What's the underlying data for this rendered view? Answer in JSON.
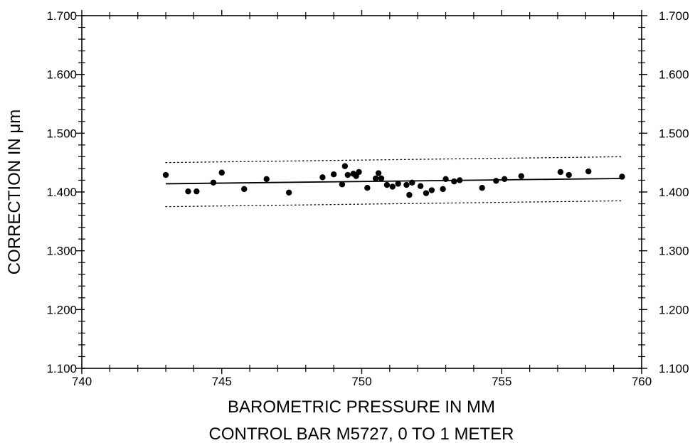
{
  "chart_data": {
    "type": "scatter",
    "title": "",
    "caption": "CONTROL BAR M5727, 0 TO 1 METER",
    "xlabel": "BAROMETRIC PRESSURE IN MM",
    "ylabel": "CORRECTION IN μm",
    "xlim": [
      740,
      760
    ],
    "ylim": [
      1.1,
      1.7
    ],
    "x_ticks": [
      "740",
      "745",
      "750",
      "755",
      "760"
    ],
    "x_tick_values": [
      740,
      745,
      750,
      755,
      760
    ],
    "y_ticks": [
      "1.100",
      "1.200",
      "1.300",
      "1.400",
      "1.500",
      "1.600",
      "1.700"
    ],
    "y_tick_values": [
      1.1,
      1.2,
      1.3,
      1.4,
      1.5,
      1.6,
      1.7
    ],
    "right_axis_labels": true,
    "grid": false,
    "points": [
      [
        743.0,
        1.429
      ],
      [
        743.8,
        1.401
      ],
      [
        744.1,
        1.401
      ],
      [
        744.7,
        1.416
      ],
      [
        745.0,
        1.433
      ],
      [
        745.8,
        1.405
      ],
      [
        746.6,
        1.422
      ],
      [
        747.4,
        1.399
      ],
      [
        748.6,
        1.425
      ],
      [
        749.0,
        1.43
      ],
      [
        749.3,
        1.413
      ],
      [
        749.4,
        1.444
      ],
      [
        749.5,
        1.429
      ],
      [
        749.7,
        1.431
      ],
      [
        749.8,
        1.427
      ],
      [
        749.9,
        1.434
      ],
      [
        750.2,
        1.407
      ],
      [
        750.5,
        1.423
      ],
      [
        750.6,
        1.432
      ],
      [
        750.7,
        1.423
      ],
      [
        750.9,
        1.412
      ],
      [
        751.1,
        1.409
      ],
      [
        751.3,
        1.414
      ],
      [
        751.6,
        1.412
      ],
      [
        751.7,
        1.395
      ],
      [
        751.8,
        1.416
      ],
      [
        752.1,
        1.41
      ],
      [
        752.3,
        1.398
      ],
      [
        752.5,
        1.403
      ],
      [
        752.9,
        1.405
      ],
      [
        753.0,
        1.422
      ],
      [
        753.3,
        1.418
      ],
      [
        753.5,
        1.42
      ],
      [
        754.3,
        1.407
      ],
      [
        754.8,
        1.419
      ],
      [
        755.1,
        1.422
      ],
      [
        755.7,
        1.427
      ],
      [
        757.1,
        1.434
      ],
      [
        757.4,
        1.429
      ],
      [
        758.1,
        1.435
      ],
      [
        759.3,
        1.426
      ]
    ],
    "fit_line": {
      "x": [
        743.0,
        759.3
      ],
      "y": [
        1.414,
        1.423
      ],
      "style": "solid"
    },
    "band_upper": {
      "x": [
        743.0,
        759.3
      ],
      "y": [
        1.45,
        1.46
      ],
      "style": "dotted"
    },
    "band_lower": {
      "x": [
        743.0,
        759.3
      ],
      "y": [
        1.375,
        1.385
      ],
      "style": "dotted"
    }
  }
}
